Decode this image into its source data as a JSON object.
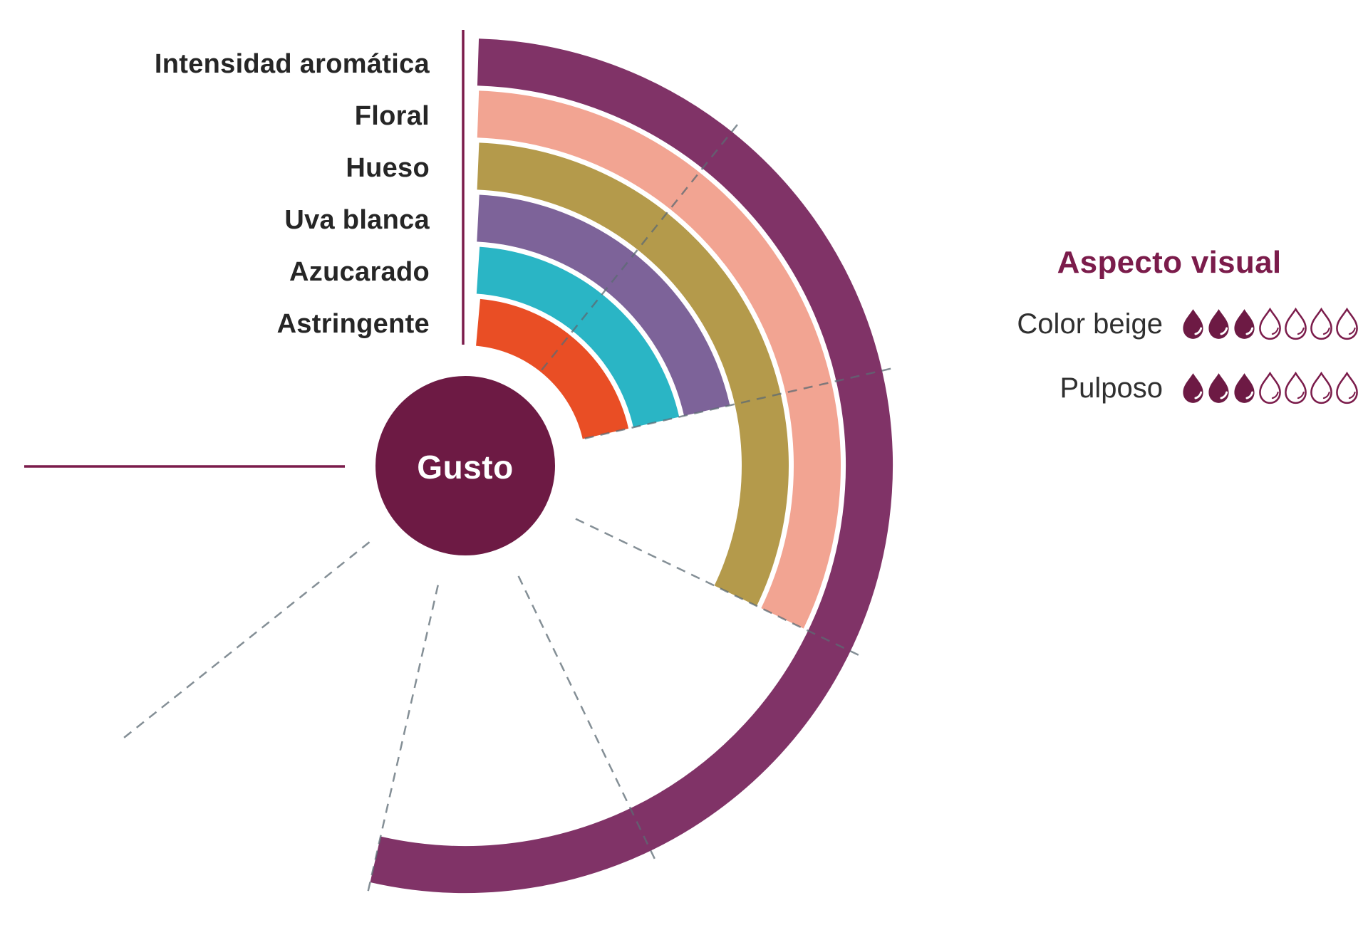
{
  "chart_data": {
    "type": "radial-bar",
    "center_label": "Gusto",
    "scale": {
      "min": 0,
      "max": 7,
      "full_angle_deg": 270,
      "gridlines": [
        1,
        2,
        3,
        4,
        5,
        6
      ]
    },
    "rings": [
      {
        "label": "Intensidad aromática",
        "value": 5,
        "color": "#803367"
      },
      {
        "label": "Floral",
        "value": 3,
        "color": "#f2a492"
      },
      {
        "label": "Hueso",
        "value": 3,
        "color": "#b49a4b"
      },
      {
        "label": "Uva blanca",
        "value": 2,
        "color": "#7d6399"
      },
      {
        "label": "Azucarado",
        "value": 2,
        "color": "#2ab5c5"
      },
      {
        "label": "Astringente",
        "value": 2,
        "color": "#e94e25"
      }
    ],
    "legend_position": "top-left"
  },
  "aspect_panel": {
    "title": "Aspecto visual",
    "rows": [
      {
        "label": "Color beige",
        "value": 3,
        "max": 7
      },
      {
        "label": "Pulposo",
        "value": 3,
        "max": 7
      }
    ]
  },
  "colors": {
    "center_circle": "#6d1a44",
    "axis_line": "#7b1c4b",
    "grid_line": "#5c6a73",
    "drop_filled": "#6d1a44",
    "drop_outline": "#7b1c4b",
    "background": "#ffffff"
  }
}
